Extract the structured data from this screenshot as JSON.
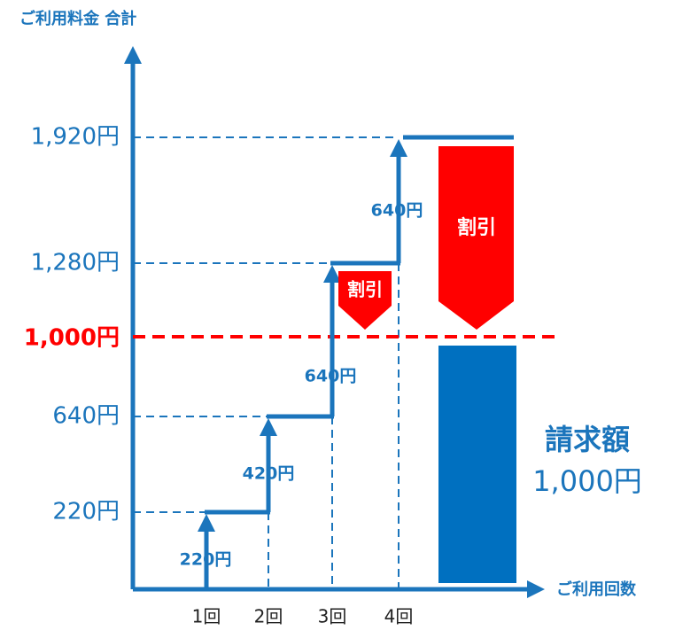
{
  "y_axis_label": "ご利用料金 合計",
  "x_axis_label": "ご利用回数",
  "y_labels": [
    "1,920円",
    "1,280円",
    "1,000円",
    "640円",
    "220円"
  ],
  "x_labels": [
    "1回",
    "2回",
    "3回",
    "4回"
  ],
  "step_labels": [
    "220円",
    "420円",
    "640円",
    "640円"
  ],
  "discount_labels": [
    "割引",
    "割引"
  ],
  "billing": {
    "title": "請求額",
    "amount": "1,000円"
  }
}
